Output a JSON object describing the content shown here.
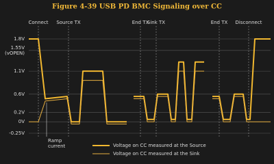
{
  "chart_data": {
    "type": "line",
    "title": "Figure 4-39  USB PD BMC Signaling over CC",
    "x": [
      0,
      14,
      24,
      56,
      62,
      74,
      79,
      108,
      114,
      123,
      143,
      148,
      153,
      168,
      173,
      183,
      188,
      203,
      208,
      214,
      219,
      226,
      231,
      238,
      243,
      256,
      262,
      268,
      278,
      284,
      294,
      300,
      313,
      318,
      323,
      330,
      353
    ],
    "xlim": [
      0,
      353
    ],
    "ylim": [
      -0.25,
      1.8
    ],
    "yticks": [
      {
        "value": -0.25,
        "label": "-0.25V"
      },
      {
        "value": 0,
        "label": "0V"
      },
      {
        "value": 0.2,
        "label": "0.2V"
      },
      {
        "value": 0.6,
        "label": "0.6V"
      },
      {
        "value": 1.1,
        "label": "1.1V"
      },
      {
        "value": 1.55,
        "label": "1.55V",
        "note": "(vOPEN)"
      },
      {
        "value": 1.8,
        "label": "1.8V"
      }
    ],
    "grid": true,
    "series": [
      {
        "name": "Voltage on CC measured at the Source",
        "color": "#f2b830",
        "width": 2,
        "values": [
          1.8,
          1.8,
          0.5,
          0.55,
          0,
          0,
          1.1,
          1.1,
          0,
          0,
          0,
          null,
          0.55,
          0.55,
          0.05,
          0.05,
          0.6,
          0.6,
          0.05,
          0.05,
          1.3,
          1.3,
          0.05,
          0.05,
          1.3,
          1.3,
          null,
          0.55,
          0.55,
          0.05,
          0.05,
          0.6,
          0.6,
          0.05,
          0.05,
          1.8,
          1.8
        ]
      },
      {
        "name": "Voltage on CC measured at the Sink",
        "color": "#e8b040",
        "width": 1,
        "values": [
          0,
          0,
          0.45,
          0.5,
          -0.05,
          -0.05,
          0.9,
          0.9,
          -0.05,
          -0.05,
          -0.05,
          null,
          0.5,
          0.5,
          0,
          0,
          0.55,
          0.55,
          0,
          0,
          1.1,
          1.1,
          0,
          0,
          1.1,
          1.1,
          null,
          0.5,
          0.5,
          0,
          0,
          0.55,
          0.55,
          0,
          0,
          0,
          0
        ]
      }
    ],
    "events": [
      {
        "label": "Connect",
        "x": 14
      },
      {
        "label": "Source TX",
        "x": 58
      },
      {
        "label": "End TX",
        "x": 163
      },
      {
        "label": "Sink TX",
        "x": 186
      },
      {
        "label": "End TX",
        "x": 278
      },
      {
        "label": "Disconnect",
        "x": 321
      }
    ],
    "annotations": [
      {
        "text": [
          "Ramp",
          "current"
        ],
        "x": 26
      }
    ]
  }
}
